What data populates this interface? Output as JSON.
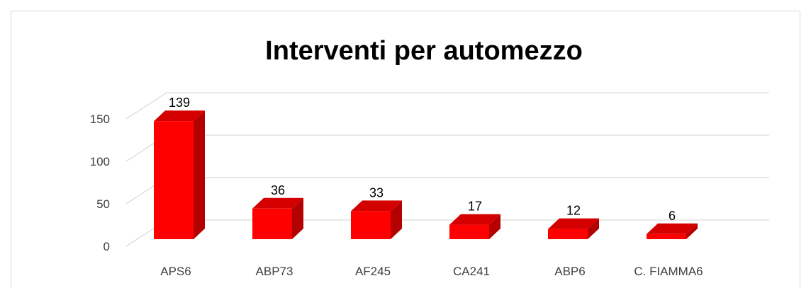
{
  "chart_data": {
    "type": "bar3d",
    "title": "Interventi per automezzo",
    "categories": [
      "APS6",
      "ABP73",
      "AF245",
      "CA241",
      "ABP6",
      "C. FIAMMA6"
    ],
    "values": [
      139,
      36,
      33,
      17,
      12,
      6
    ],
    "color": "#ff0000",
    "ylim": [
      0,
      150
    ],
    "yticks": [
      0,
      50,
      100,
      150
    ],
    "grid": true
  }
}
